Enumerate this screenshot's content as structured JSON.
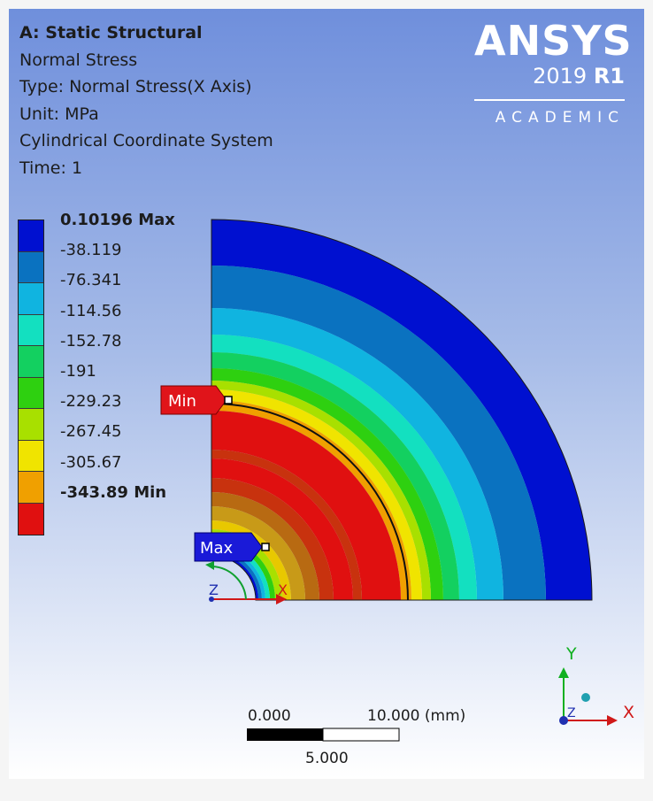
{
  "info": {
    "title": "A: Static Structural",
    "result": "Normal Stress",
    "type": "Type: Normal Stress(X Axis)",
    "unit": "Unit: MPa",
    "coord": "Cylindrical Coordinate System",
    "time": "Time: 1"
  },
  "brand": {
    "name": "ANSYS",
    "version": "2019",
    "release": "R1",
    "edition": "ACADEMIC"
  },
  "legend": {
    "labels": [
      "0.10196 Max",
      "-38.119",
      "-76.341",
      "-114.56",
      "-152.78",
      "-191",
      "-229.23",
      "-267.45",
      "-305.67",
      "-343.89 Min"
    ],
    "colors": [
      "#0010d0",
      "#0a72c0",
      "#10b4e0",
      "#13e0c0",
      "#13d060",
      "#2ed010",
      "#a8e000",
      "#f0e400",
      "#f0a000",
      "#e01010"
    ]
  },
  "probes": {
    "min": "Min",
    "max": "Max"
  },
  "triad": {
    "x": "X",
    "y": "Y",
    "z": "Z"
  },
  "scalebar": {
    "left": "0.000",
    "right": "10.000 (mm)",
    "mid": "5.000"
  }
}
